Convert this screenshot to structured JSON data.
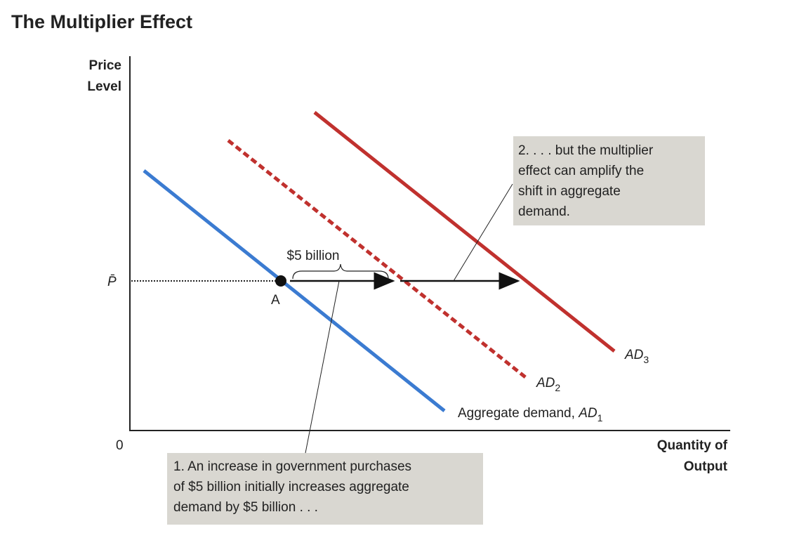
{
  "header": {
    "title": "The Multiplier Effect"
  },
  "axes": {
    "y_label": [
      "Price",
      "Level"
    ],
    "x_label": [
      "Quantity of",
      "Output"
    ],
    "origin": "0",
    "price_level": "P̄"
  },
  "point": {
    "label": "A"
  },
  "brace": {
    "label": "$5 billion"
  },
  "curves": [
    {
      "text": "Aggregate demand, ",
      "name": "AD",
      "sub": "1"
    },
    {
      "text": "",
      "name": "AD",
      "sub": "2"
    },
    {
      "text": "",
      "name": "AD",
      "sub": "3"
    }
  ],
  "notes": [
    {
      "lines": [
        "1. An increase in government purchases",
        "of $5 billion initially increases aggregate",
        "demand by $5 billion . . ."
      ]
    },
    {
      "lines": [
        "2. . . . but the multiplier",
        "effect can amplify the",
        "shift in aggregate",
        "demand."
      ]
    }
  ]
}
